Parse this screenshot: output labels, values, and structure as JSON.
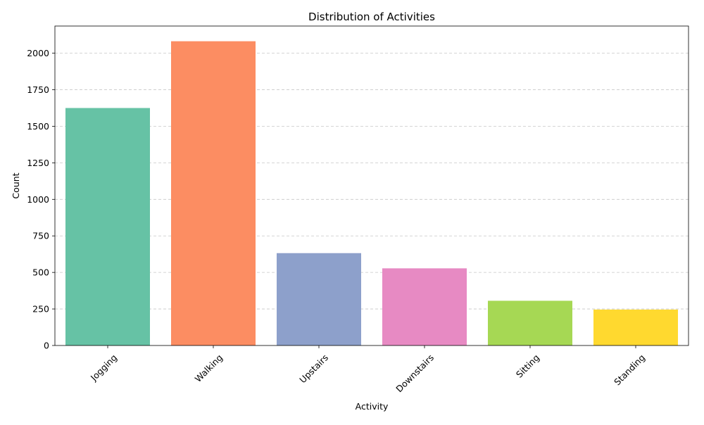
{
  "chart_data": {
    "type": "bar",
    "title": "Distribution of Activities",
    "xlabel": "Activity",
    "ylabel": "Count",
    "categories": [
      "Jogging",
      "Walking",
      "Upstairs",
      "Downstairs",
      "Sitting",
      "Standing"
    ],
    "values": [
      1625,
      2082,
      632,
      528,
      306,
      246
    ],
    "colors": [
      "#66c2a5",
      "#fc8d62",
      "#8da0cb",
      "#e78ac3",
      "#a6d854",
      "#ffd92f"
    ],
    "ylim": [
      0,
      2186
    ],
    "yticks": [
      0,
      250,
      500,
      750,
      1000,
      1250,
      1500,
      1750,
      2000
    ],
    "grid": "y-dashed",
    "xtick_rotation": 45
  }
}
